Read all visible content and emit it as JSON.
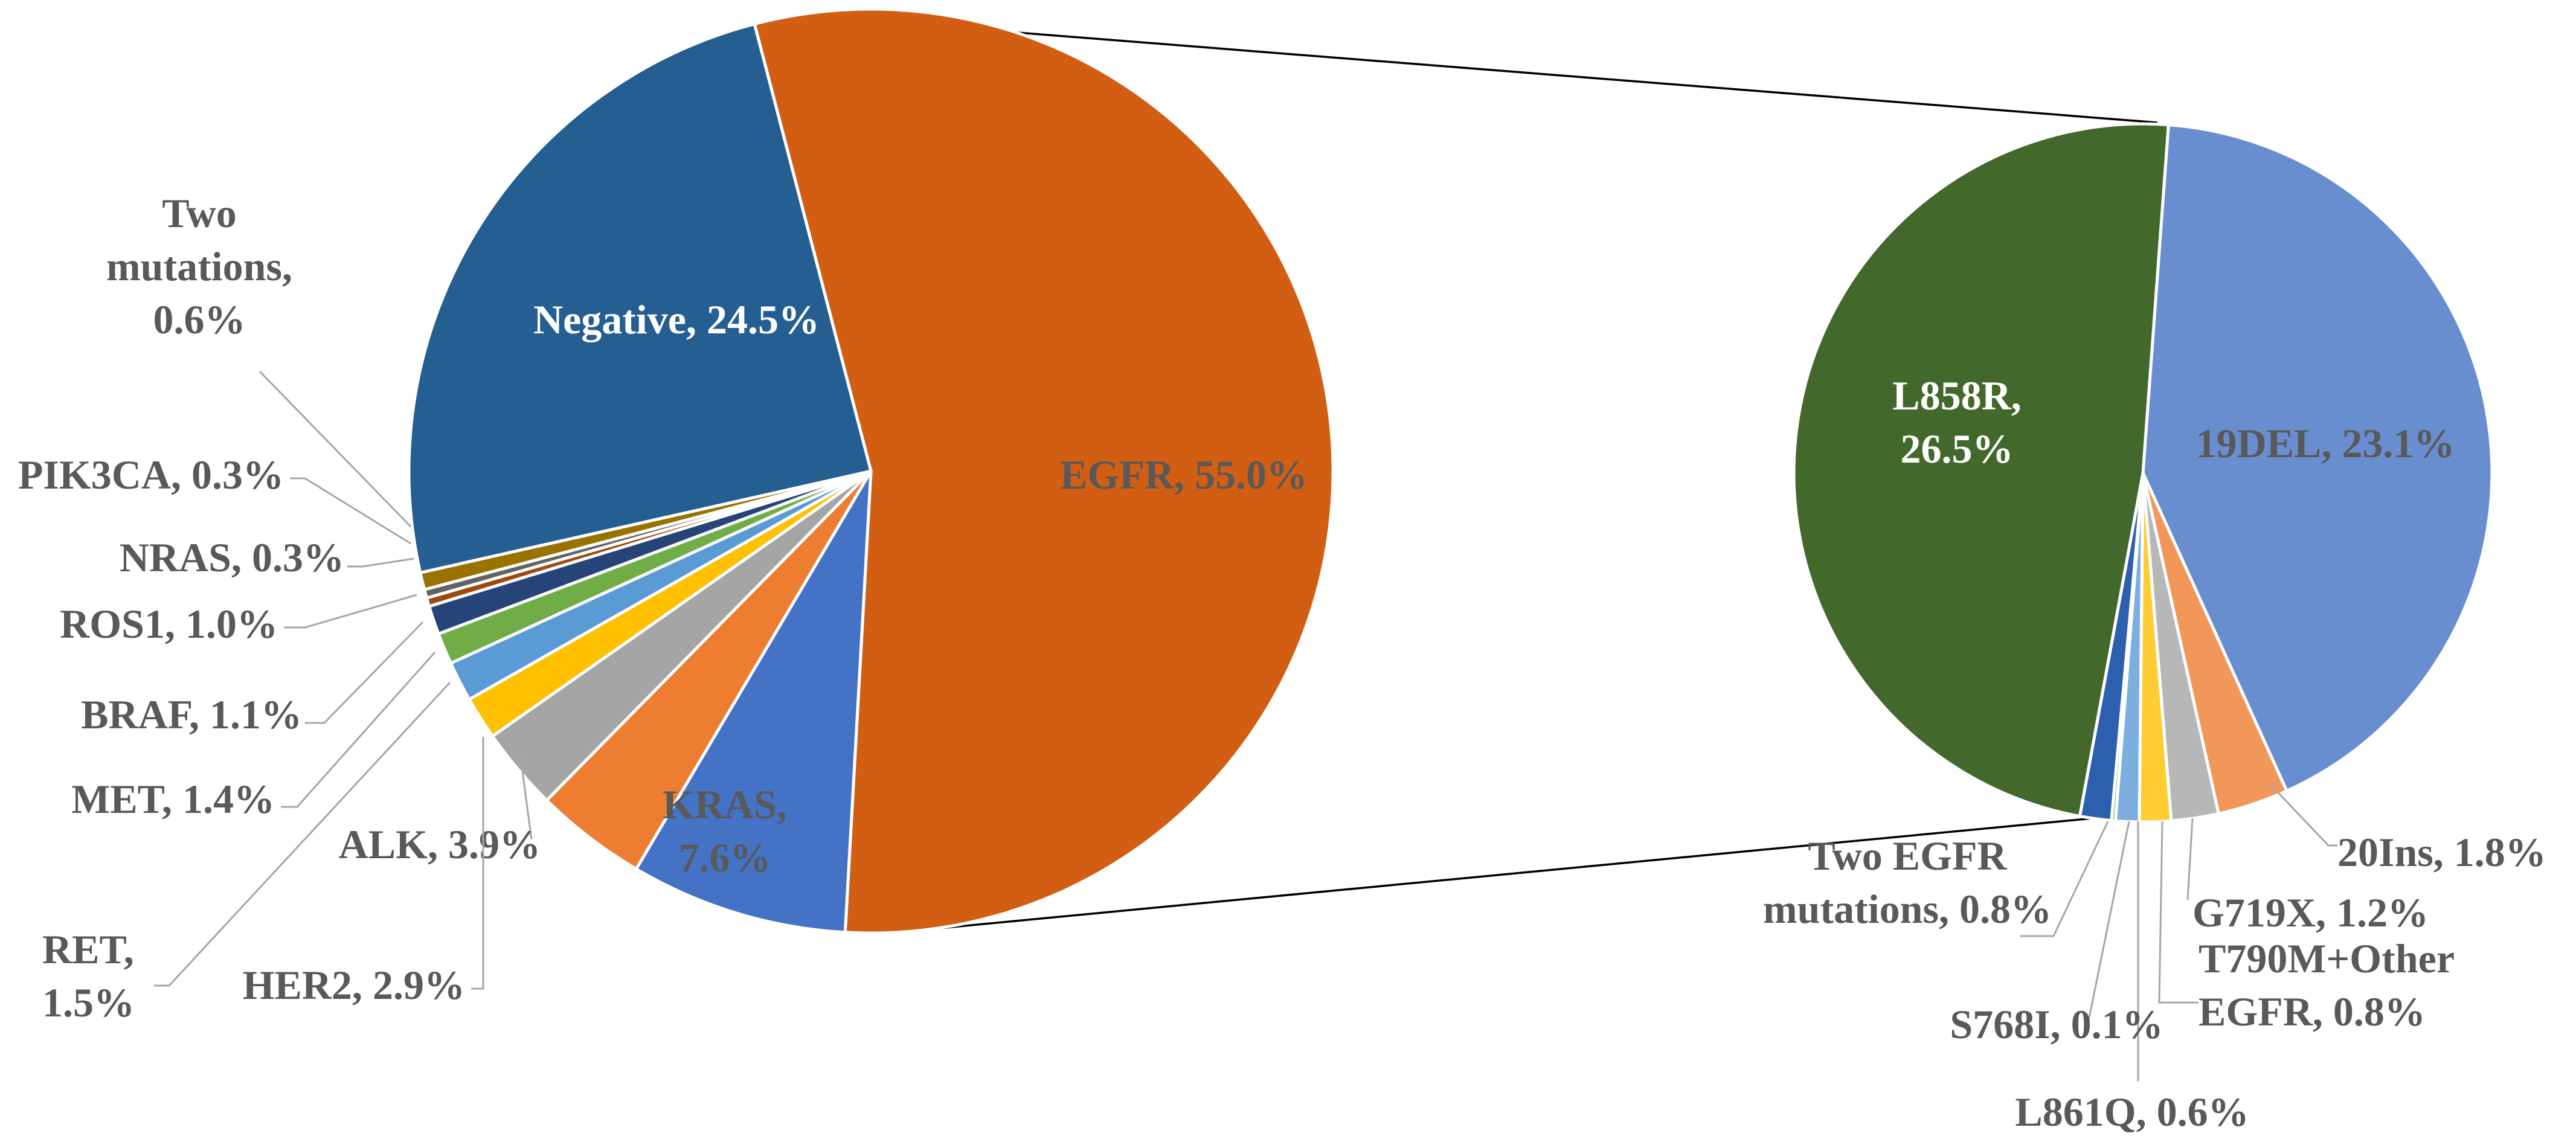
{
  "chart_data": [
    {
      "type": "pie",
      "name": "main",
      "slices": [
        {
          "label": "EGFR",
          "text": [
            "EGFR, 55.0%"
          ],
          "value": 55.0,
          "color": "#D15E12"
        },
        {
          "label": "KRAS",
          "text": [
            "KRAS,",
            "7.6%"
          ],
          "value": 7.6,
          "color": "#4472C4"
        },
        {
          "label": "ALK",
          "text": [
            "ALK, 3.9%"
          ],
          "value": 3.9,
          "color": "#ED7D31"
        },
        {
          "label": "HER2",
          "text": [
            "HER2, 2.9%"
          ],
          "value": 2.9,
          "color": "#A5A5A5"
        },
        {
          "label": "RET",
          "text": [
            "RET,",
            "1.5%"
          ],
          "value": 1.5,
          "color": "#FFC000"
        },
        {
          "label": "MET",
          "text": [
            "MET, 1.4%"
          ],
          "value": 1.4,
          "color": "#5B9BD5"
        },
        {
          "label": "BRAF",
          "text": [
            "BRAF, 1.1%"
          ],
          "value": 1.1,
          "color": "#70AD47"
        },
        {
          "label": "ROS1",
          "text": [
            "ROS1, 1.0%"
          ],
          "value": 1.0,
          "color": "#264478"
        },
        {
          "label": "NRAS",
          "text": [
            "NRAS, 0.3%"
          ],
          "value": 0.3,
          "color": "#9E480E"
        },
        {
          "label": "PIK3CA",
          "text": [
            "PIK3CA, 0.3%"
          ],
          "value": 0.3,
          "color": "#636363"
        },
        {
          "label": "Two mutations",
          "text": [
            "Two",
            "mutations,",
            "0.6%"
          ],
          "value": 0.6,
          "color": "#997300"
        },
        {
          "label": "Negative",
          "text": [
            "Negative, 24.5%"
          ],
          "value": 24.5,
          "color": "#255E91"
        }
      ]
    },
    {
      "type": "pie",
      "name": "egfr-breakdown",
      "slices": [
        {
          "label": "19DEL",
          "text": [
            "19DEL, 23.1%"
          ],
          "value": 23.1,
          "color": "#698ED0"
        },
        {
          "label": "20Ins",
          "text": [
            "20Ins, 1.8%"
          ],
          "value": 1.8,
          "color": "#F1975A"
        },
        {
          "label": "G719X",
          "text": [
            "G719X, 1.2%"
          ],
          "value": 1.2,
          "color": "#B7B7B7"
        },
        {
          "label": "T790M+Other EGFR",
          "text": [
            "T790M+Other",
            "EGFR, 0.8%"
          ],
          "value": 0.8,
          "color": "#FFCD33"
        },
        {
          "label": "L861Q",
          "text": [
            "L861Q, 0.6%"
          ],
          "value": 0.6,
          "color": "#7CAFDD"
        },
        {
          "label": "S768I",
          "text": [
            "S768I, 0.1%"
          ],
          "value": 0.1,
          "color": "#8CC168"
        },
        {
          "label": "Two EGFR mutations",
          "text": [
            "Two EGFR",
            "mutations, 0.8%"
          ],
          "value": 0.8,
          "color": "#2C5FAE"
        },
        {
          "label": "L858R",
          "text": [
            "L858R,",
            "26.5%"
          ],
          "value": 26.5,
          "color": "#43682B"
        }
      ]
    }
  ]
}
